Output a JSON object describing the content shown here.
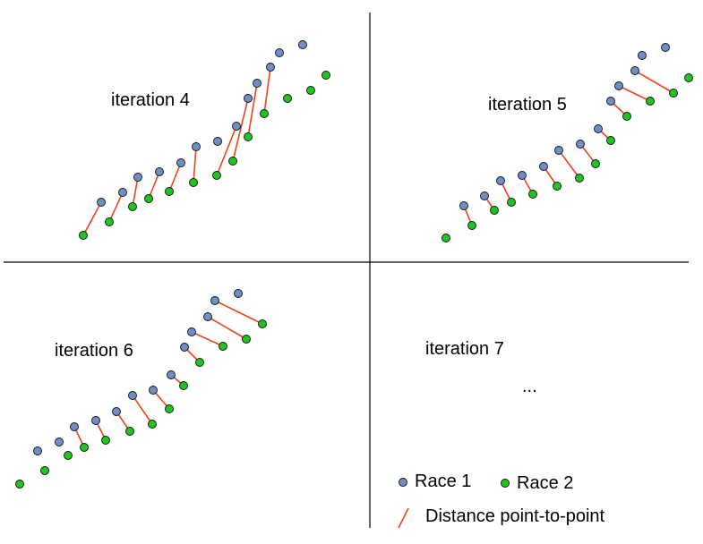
{
  "panels": [
    {
      "label": "iteration 4",
      "race1": [
        [
          113,
          226
        ],
        [
          137,
          215
        ],
        [
          154,
          198
        ],
        [
          178,
          192
        ],
        [
          202,
          182
        ],
        [
          219,
          164
        ],
        [
          243,
          158
        ],
        [
          264,
          141
        ],
        [
          277,
          110
        ],
        [
          287,
          93
        ],
        [
          302,
          75
        ],
        [
          312,
          59
        ],
        [
          338,
          50
        ]
      ],
      "race2": [
        [
          93,
          263
        ],
        [
          122,
          248
        ],
        [
          148,
          231
        ],
        [
          166,
          222
        ],
        [
          189,
          214
        ],
        [
          216,
          204
        ],
        [
          242,
          196
        ],
        [
          260,
          180
        ],
        [
          277,
          153
        ],
        [
          295,
          127
        ],
        [
          321,
          110
        ],
        [
          347,
          101
        ],
        [
          364,
          84
        ]
      ],
      "links": [
        [
          0,
          0
        ],
        [
          1,
          1
        ],
        [
          2,
          2
        ],
        [
          3,
          3
        ],
        [
          4,
          4
        ],
        [
          5,
          5
        ],
        [
          7,
          6
        ],
        [
          8,
          7
        ],
        [
          9,
          8
        ],
        [
          10,
          9
        ]
      ]
    },
    {
      "label": "iteration 5",
      "race1": [
        [
          518,
          230
        ],
        [
          541,
          219
        ],
        [
          559,
          202
        ],
        [
          583,
          196
        ],
        [
          607,
          186
        ],
        [
          624,
          168
        ],
        [
          648,
          161
        ],
        [
          668,
          144
        ],
        [
          682,
          113
        ],
        [
          691,
          96
        ],
        [
          709,
          79
        ],
        [
          717,
          62
        ],
        [
          743,
          53
        ]
      ],
      "race2": [
        [
          498,
          266
        ],
        [
          527,
          252
        ],
        [
          552,
          235
        ],
        [
          571,
          226
        ],
        [
          595,
          217
        ],
        [
          622,
          208
        ],
        [
          647,
          199
        ],
        [
          665,
          183
        ],
        [
          682,
          157
        ],
        [
          700,
          130
        ],
        [
          726,
          113
        ],
        [
          752,
          104
        ],
        [
          769,
          87
        ]
      ],
      "links": [
        [
          0,
          1
        ],
        [
          1,
          2
        ],
        [
          2,
          3
        ],
        [
          3,
          4
        ],
        [
          4,
          5
        ],
        [
          5,
          6
        ],
        [
          6,
          7
        ],
        [
          7,
          8
        ],
        [
          8,
          9
        ],
        [
          9,
          10
        ],
        [
          10,
          11
        ]
      ]
    },
    {
      "label": "iteration 6",
      "race1": [
        [
          42,
          504
        ],
        [
          66,
          494
        ],
        [
          83,
          477
        ],
        [
          107,
          470
        ],
        [
          130,
          460
        ],
        [
          148,
          442
        ],
        [
          171,
          436
        ],
        [
          191,
          419
        ],
        [
          206,
          388
        ],
        [
          214,
          371
        ],
        [
          232,
          354
        ],
        [
          240,
          336
        ],
        [
          266,
          328
        ]
      ],
      "race2": [
        [
          22,
          541
        ],
        [
          50,
          526
        ],
        [
          76,
          509
        ],
        [
          94,
          500
        ],
        [
          118,
          492
        ],
        [
          145,
          482
        ],
        [
          170,
          474
        ],
        [
          189,
          457
        ],
        [
          205,
          431
        ],
        [
          223,
          405
        ],
        [
          249,
          387
        ],
        [
          275,
          379
        ],
        [
          293,
          362
        ]
      ],
      "links": [
        [
          2,
          3
        ],
        [
          3,
          4
        ],
        [
          4,
          5
        ],
        [
          5,
          6
        ],
        [
          6,
          7
        ],
        [
          7,
          8
        ],
        [
          8,
          9
        ],
        [
          9,
          10
        ],
        [
          10,
          11
        ],
        [
          11,
          12
        ]
      ]
    }
  ],
  "empty_panel": {
    "label": "iteration 7",
    "ellipsis": "..."
  },
  "legend": {
    "race1_label": "Race 1",
    "race2_label": "Race 2",
    "distance_label": "Distance point-to-point"
  },
  "colors": {
    "race1_fill": "#6f8fc4",
    "race2_fill": "#1fc41f",
    "link": "#f0421c",
    "divider": "#000000",
    "marker_stroke": "#111111"
  }
}
